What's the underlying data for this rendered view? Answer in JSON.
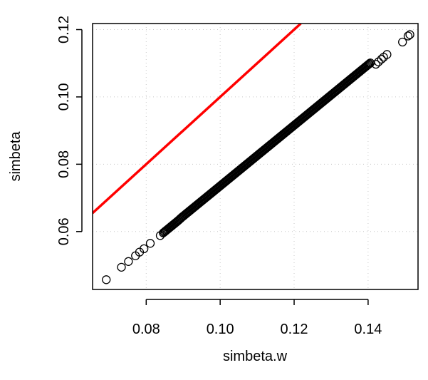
{
  "chart_data": {
    "type": "scatter",
    "title": "",
    "xlabel": "simbeta.w",
    "ylabel": "simbeta",
    "xlim": [
      0.0655,
      0.1535
    ],
    "ylim": [
      0.0428,
      0.1218
    ],
    "x_ticks": [
      0.08,
      0.1,
      0.12,
      0.14
    ],
    "x_tick_labels": [
      "0.08",
      "0.10",
      "0.12",
      "0.14"
    ],
    "y_ticks": [
      0.06,
      0.08,
      0.1,
      0.12
    ],
    "y_tick_labels": [
      "0.06",
      "0.08",
      "0.10",
      "0.12"
    ],
    "grid": true,
    "legend": "none",
    "point_color": "#000000",
    "line_color": "#ff0000",
    "reference_line": {
      "type": "y=x",
      "from": [
        0.0655,
        0.0655
      ],
      "to": [
        0.1218,
        0.1218
      ]
    },
    "series": [
      {
        "marker": "open-circle",
        "x": [
          0.0692,
          0.0733,
          0.0752,
          0.0771,
          0.0782,
          0.0794,
          0.0811,
          0.0838,
          0.0846,
          0.0856,
          0.0866,
          0.0876,
          0.0886,
          0.0896,
          0.0906,
          0.0916,
          0.0926,
          0.0936,
          0.0946,
          0.0956,
          0.0966,
          0.0976,
          0.0986,
          0.0996,
          0.1006,
          0.1016,
          0.1026,
          0.1036,
          0.1046,
          0.1056,
          0.1066,
          0.1076,
          0.1086,
          0.1096,
          0.1106,
          0.1116,
          0.1126,
          0.1136,
          0.1146,
          0.1156,
          0.1166,
          0.1176,
          0.1186,
          0.1196,
          0.1206,
          0.1216,
          0.1226,
          0.1236,
          0.1246,
          0.1256,
          0.1266,
          0.1276,
          0.1286,
          0.1296,
          0.1306,
          0.1316,
          0.1326,
          0.1336,
          0.1346,
          0.1356,
          0.1366,
          0.1376,
          0.1386,
          0.1396,
          0.1406,
          0.1421,
          0.1428,
          0.1436,
          0.1442,
          0.1451,
          0.1493,
          0.1508,
          0.1513
        ],
        "y": [
          0.0457,
          0.0494,
          0.0511,
          0.0528,
          0.0539,
          0.0549,
          0.0565,
          0.0588,
          0.0596,
          0.0605,
          0.0614,
          0.0623,
          0.0632,
          0.0642,
          0.0651,
          0.066,
          0.0669,
          0.0678,
          0.0687,
          0.0696,
          0.0705,
          0.0714,
          0.0723,
          0.0732,
          0.0741,
          0.075,
          0.0759,
          0.0768,
          0.0777,
          0.0786,
          0.0795,
          0.0804,
          0.0813,
          0.0822,
          0.0831,
          0.084,
          0.0849,
          0.0858,
          0.0867,
          0.0876,
          0.0885,
          0.0894,
          0.0903,
          0.0912,
          0.0921,
          0.093,
          0.0939,
          0.0948,
          0.0957,
          0.0966,
          0.0975,
          0.0984,
          0.0993,
          0.1002,
          0.1011,
          0.102,
          0.1029,
          0.1038,
          0.1047,
          0.1056,
          0.1065,
          0.1074,
          0.1083,
          0.1092,
          0.1101,
          0.1097,
          0.1104,
          0.1112,
          0.1118,
          0.1126,
          0.1163,
          0.1181,
          0.1185
        ]
      }
    ]
  }
}
